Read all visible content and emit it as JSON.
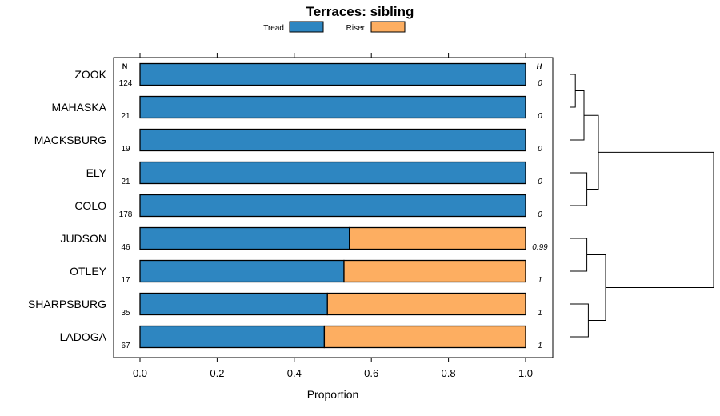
{
  "chart_data": {
    "type": "bar",
    "stacked": true,
    "orientation": "horizontal",
    "title": "Terraces: sibling",
    "xlabel": "Proportion",
    "xlim": [
      0,
      1
    ],
    "xticks": [
      "0.0",
      "0.2",
      "0.4",
      "0.6",
      "0.8",
      "1.0"
    ],
    "legend": {
      "position": "top",
      "entries": [
        "Tread",
        "Riser"
      ]
    },
    "n_header": "N",
    "h_header": "H",
    "categories": [
      "ZOOK",
      "MAHASKA",
      "MACKSBURG",
      "ELY",
      "COLO",
      "JUDSON",
      "OTLEY",
      "SHARPSBURG",
      "LADOGA"
    ],
    "n": [
      "124",
      "21",
      "19",
      "21",
      "178",
      "46",
      "17",
      "35",
      "67"
    ],
    "h": [
      "0",
      "0",
      "0",
      "0",
      "0",
      "0.99",
      "1",
      "1",
      "1"
    ],
    "series": [
      {
        "name": "Tread",
        "color": "#2e86c1",
        "values": [
          1.0,
          1.0,
          1.0,
          1.0,
          1.0,
          0.543,
          0.529,
          0.486,
          0.478
        ]
      },
      {
        "name": "Riser",
        "color": "#fdae61",
        "values": [
          0.0,
          0.0,
          0.0,
          0.0,
          0.0,
          0.457,
          0.471,
          0.514,
          0.522
        ]
      }
    ],
    "dendrogram": {
      "merges": [
        [
          0,
          1
        ],
        [
          -1,
          2
        ],
        [
          3,
          4
        ],
        [
          -2,
          -3
        ],
        [
          5,
          6
        ],
        [
          7,
          8
        ],
        [
          -5,
          -6
        ],
        [
          -4,
          -7
        ]
      ],
      "heights": [
        0.04,
        0.1,
        0.12,
        0.2,
        0.12,
        0.13,
        0.25,
        1.0
      ]
    }
  }
}
